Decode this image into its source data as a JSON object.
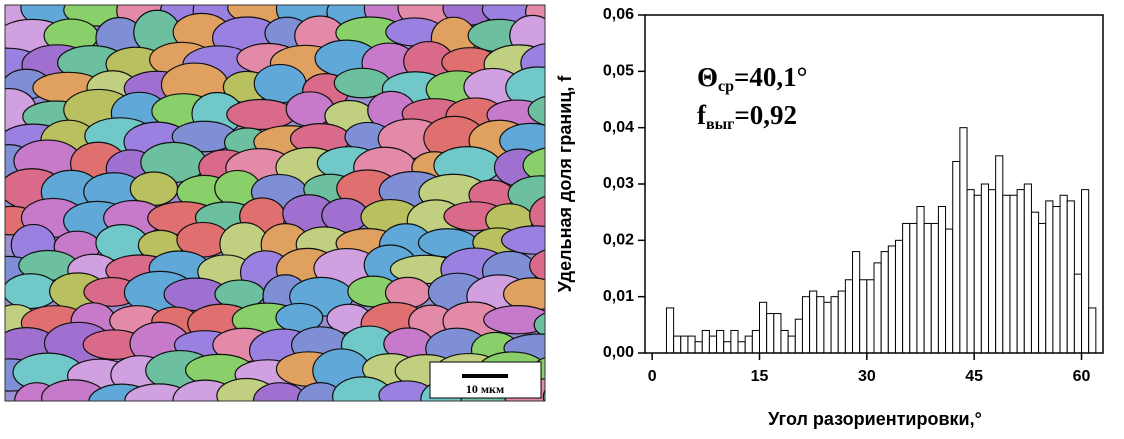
{
  "image": {
    "scale_label": "10 мкм"
  },
  "chart_data": {
    "type": "histogram",
    "x_label": "Угол разориентировки,°",
    "y_label": "Удельная доля границ, f",
    "annotations": [
      {
        "main": "Θ",
        "sub": "ср",
        "rest": "=40,1°"
      },
      {
        "main": "f",
        "sub": "выг",
        "rest": "=0,92"
      }
    ],
    "bins": [
      2,
      3,
      4,
      5,
      6,
      7,
      8,
      9,
      10,
      11,
      12,
      13,
      14,
      15,
      16,
      17,
      18,
      19,
      20,
      21,
      22,
      23,
      24,
      25,
      26,
      27,
      28,
      29,
      30,
      31,
      32,
      33,
      34,
      35,
      36,
      37,
      38,
      39,
      40,
      41,
      42,
      43,
      44,
      45,
      46,
      47,
      48,
      49,
      50,
      51,
      52,
      53,
      54,
      55,
      56,
      57,
      58,
      59,
      60,
      61,
      62
    ],
    "values": [
      0.008,
      0.003,
      0.003,
      0.003,
      0.002,
      0.004,
      0.003,
      0.004,
      0.002,
      0.004,
      0.002,
      0.003,
      0.004,
      0.009,
      0.007,
      0.007,
      0.004,
      0.003,
      0.006,
      0.01,
      0.011,
      0.01,
      0.009,
      0.01,
      0.011,
      0.013,
      0.018,
      0.013,
      0.013,
      0.016,
      0.018,
      0.019,
      0.02,
      0.023,
      0.023,
      0.026,
      0.023,
      0.023,
      0.026,
      0.022,
      0.034,
      0.04,
      0.029,
      0.028,
      0.03,
      0.029,
      0.035,
      0.028,
      0.028,
      0.029,
      0.03,
      0.025,
      0.023,
      0.027,
      0.026,
      0.028,
      0.027,
      0.014,
      0.029,
      0.008
    ],
    "color": "#ffffff",
    "xlim": [
      -1,
      63
    ],
    "xticks": [
      0,
      15,
      30,
      45,
      60
    ],
    "ylim": [
      0,
      0.06
    ],
    "yticks": [
      {
        "value": 0,
        "label": "0,00"
      },
      {
        "value": 0.01,
        "label": "0,01"
      },
      {
        "value": 0.02,
        "label": "0,02"
      },
      {
        "value": 0.03,
        "label": "0,03"
      },
      {
        "value": 0.04,
        "label": "0,04"
      },
      {
        "value": 0.05,
        "label": "0,05"
      },
      {
        "value": 0.06,
        "label": "0,06"
      }
    ],
    "grid": false
  }
}
